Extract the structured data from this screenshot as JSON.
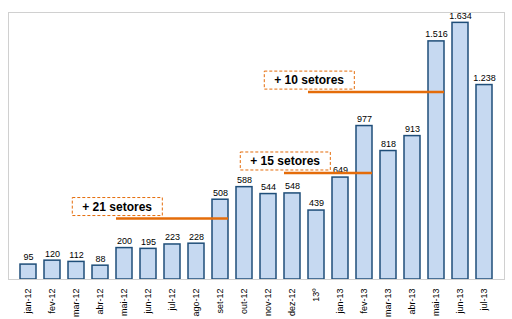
{
  "chart_data": {
    "type": "bar",
    "categories": [
      "jan-12",
      "fev-12",
      "mar-12",
      "abr-12",
      "mai-12",
      "jun-12",
      "jul-12",
      "ago-12",
      "set-12",
      "out-12",
      "nov-12",
      "dez-12",
      "13º",
      "jan-13",
      "fev-13",
      "mar-13",
      "abr-13",
      "mai-13",
      "jun-13",
      "jul-13"
    ],
    "values": [
      95,
      120,
      112,
      88,
      200,
      195,
      223,
      228,
      508,
      588,
      544,
      548,
      439,
      649,
      977,
      818,
      913,
      1516,
      1634,
      1238
    ],
    "value_labels": [
      "95",
      "120",
      "112",
      "88",
      "200",
      "195",
      "223",
      "228",
      "508",
      "588",
      "544",
      "548",
      "439",
      "649",
      "977",
      "818",
      "913",
      "1.516",
      "1.634",
      "1.238"
    ],
    "color": "#c6d9f1",
    "ylim": [
      0,
      1700
    ],
    "grid": false,
    "data_labels": true,
    "tick_labels": "x",
    "annotations": [
      {
        "text": "+ 21 setores",
        "from": "mai-12",
        "to": "set-12",
        "y": 385
      },
      {
        "text": "+ 15 setores",
        "from": "dez-12",
        "to": "fev-13",
        "y": 675
      },
      {
        "text": "+ 10 setores",
        "from": "13º",
        "to": "mai-13",
        "y": 1190
      }
    ]
  }
}
